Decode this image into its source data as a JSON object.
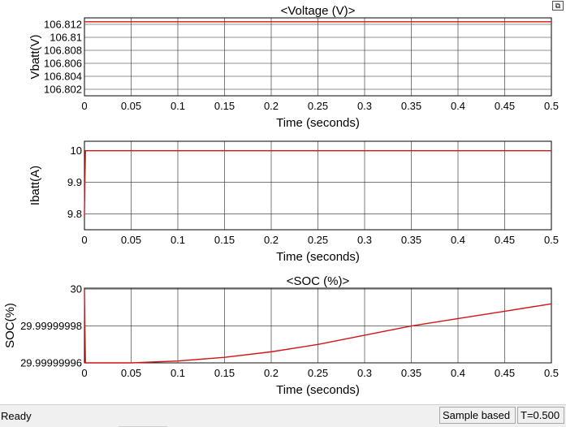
{
  "window": {
    "restore_icon": "restore-window-icon",
    "restore_glyph": "⧉"
  },
  "status": {
    "text": "Ready",
    "sample_mode": "Sample based",
    "time": "T=0.500"
  },
  "colors": {
    "trace": "#d11414",
    "grid": "#262626",
    "background": "#ffffff"
  },
  "chart_data": [
    {
      "type": "line",
      "title": "<Voltage (V)>",
      "xlabel": "Time (seconds)",
      "ylabel": "Vbatt(V)",
      "xlim": [
        0,
        0.5
      ],
      "ylim": [
        106.801,
        106.813
      ],
      "xticks": [
        0,
        0.05,
        0.1,
        0.15,
        0.2,
        0.25,
        0.3,
        0.35,
        0.4,
        0.45,
        0.5
      ],
      "xtick_labels": [
        "0",
        "0.05",
        "0.1",
        "0.15",
        "0.2",
        "0.25",
        "0.3",
        "0.35",
        "0.4",
        "0.45",
        "0.5"
      ],
      "yticks": [
        106.802,
        106.804,
        106.806,
        106.808,
        106.81,
        106.812
      ],
      "ytick_labels": [
        "106.802",
        "106.804",
        "106.806",
        "106.808",
        "106.81",
        "106.812"
      ],
      "grid": true,
      "series": [
        {
          "x": [
            0,
            0.5
          ],
          "y": [
            106.8124,
            106.8124
          ]
        }
      ]
    },
    {
      "type": "line",
      "title": "",
      "xlabel": "Time (seconds)",
      "ylabel": "Ibatt(A)",
      "xlim": [
        0,
        0.5
      ],
      "ylim": [
        9.75,
        10.03
      ],
      "xticks": [
        0,
        0.05,
        0.1,
        0.15,
        0.2,
        0.25,
        0.3,
        0.35,
        0.4,
        0.45,
        0.5
      ],
      "xtick_labels": [
        "0",
        "0.05",
        "0.1",
        "0.15",
        "0.2",
        "0.25",
        "0.3",
        "0.35",
        "0.4",
        "0.45",
        "0.5"
      ],
      "yticks": [
        9.8,
        9.9,
        10
      ],
      "ytick_labels": [
        "9.8",
        "9.9",
        "10"
      ],
      "grid": true,
      "series": [
        {
          "x": [
            0,
            0,
            0.001,
            0.5
          ],
          "y": [
            9.79,
            9.8,
            10,
            10
          ]
        }
      ]
    },
    {
      "type": "line",
      "title": "<SOC (%)>",
      "xlabel": "Time (seconds)",
      "ylabel": "SOC(%)",
      "xlim": [
        0,
        0.5
      ],
      "ylim": [
        29.99999996,
        30.0000000005
      ],
      "xticks": [
        0,
        0.05,
        0.1,
        0.15,
        0.2,
        0.25,
        0.3,
        0.35,
        0.4,
        0.45,
        0.5
      ],
      "xtick_labels": [
        "0",
        "0.05",
        "0.1",
        "0.15",
        "0.2",
        "0.25",
        "0.3",
        "0.35",
        "0.4",
        "0.45",
        "0.5"
      ],
      "yticks": [
        29.99999996,
        29.99999998,
        30
      ],
      "ytick_labels": [
        "29.99999996",
        "29.99999998",
        "30"
      ],
      "grid": true,
      "series": [
        {
          "x": [
            0,
            0,
            0.001,
            0.05,
            0.1,
            0.15,
            0.2,
            0.25,
            0.3,
            0.35,
            0.4,
            0.45,
            0.5
          ],
          "y": [
            29.9999999998,
            29.9999999998,
            29.99999996,
            29.99999996,
            29.999999961,
            29.999999963,
            29.999999966,
            29.99999997,
            29.999999975,
            29.99999998,
            29.999999984,
            29.999999988,
            29.999999992
          ]
        }
      ]
    }
  ]
}
